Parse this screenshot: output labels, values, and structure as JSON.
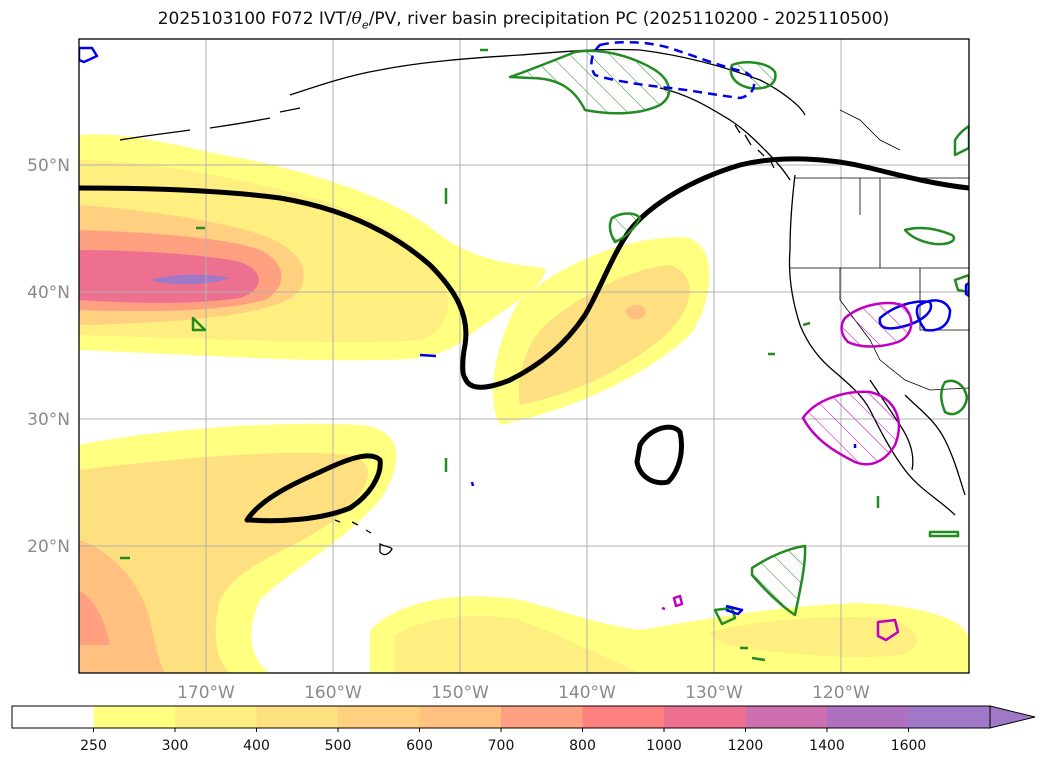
{
  "title": {
    "prefix": "2025103100 F072 IVT/",
    "theta_symbol": "θ",
    "theta_sub": "e",
    "suffix": "/PV, river basin precipitation PC (2025110200 - 2025110500)"
  },
  "map": {
    "lon_range": [
      -180,
      -110
    ],
    "lat_range": [
      10,
      60
    ],
    "lat_ticks": [
      {
        "value": 20,
        "label": "20°N"
      },
      {
        "value": 30,
        "label": "30°N"
      },
      {
        "value": 40,
        "label": "40°N"
      },
      {
        "value": 50,
        "label": "50°N"
      }
    ],
    "lon_ticks": [
      {
        "value": -170,
        "label": "170°W"
      },
      {
        "value": -160,
        "label": "160°W"
      },
      {
        "value": -150,
        "label": "150°W"
      },
      {
        "value": -140,
        "label": "140°W"
      },
      {
        "value": -130,
        "label": "130°W"
      },
      {
        "value": -120,
        "label": "120°W"
      }
    ],
    "gridlines": true
  },
  "colorbar": {
    "units_levels": [
      "250",
      "300",
      "400",
      "500",
      "600",
      "700",
      "800",
      "1000",
      "1200",
      "1400",
      "1600"
    ],
    "colors": [
      "#ffffff",
      "#ffff80",
      "#ffee80",
      "#ffe080",
      "#ffd080",
      "#ffc080",
      "#ffa080",
      "#ff8080",
      "#ee7090",
      "#cc70b0",
      "#b070c0",
      "#a078c8"
    ],
    "extend": "max"
  },
  "legend_colors": {
    "ivt_fill_low": "#ffff80",
    "ivt_fill_high": "#a078c8",
    "pv_contour": "#000000",
    "precip_pc_green": "#228B22",
    "precip_pc_blue": "#0000ee",
    "precip_pc_magenta": "#c000c0"
  }
}
